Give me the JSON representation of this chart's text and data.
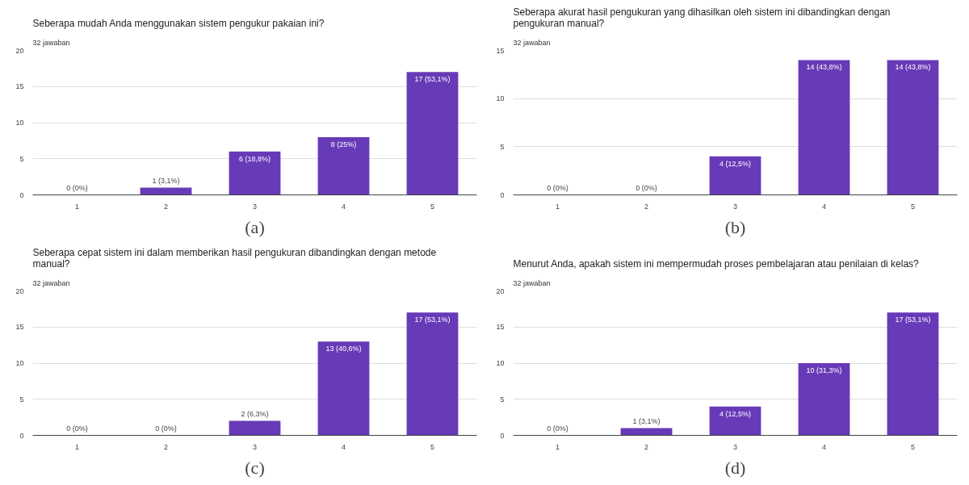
{
  "chart_data": [
    {
      "type": "bar",
      "title": "Seberapa mudah Anda menggunakan sistem pengukur pakaian ini?",
      "subtitle": "32 jawaban",
      "categories": [
        "1",
        "2",
        "3",
        "4",
        "5"
      ],
      "values": [
        0,
        1,
        6,
        8,
        17
      ],
      "value_labels": [
        "0 (0%)",
        "1 (3,1%)",
        "6 (18,8%)",
        "8 (25%)",
        "17 (53,1%)"
      ],
      "color": "#673ab7",
      "ylim": [
        0,
        20
      ],
      "yticks": [
        0,
        5,
        10,
        15,
        20
      ],
      "grid": "y",
      "annotations": [
        "(a)"
      ]
    },
    {
      "type": "bar",
      "title": "Seberapa akurat hasil pengukuran yang dihasilkan oleh sistem ini dibandingkan dengan pengukuran manual?",
      "subtitle": "32 jawaban",
      "categories": [
        "1",
        "2",
        "3",
        "4",
        "5"
      ],
      "values": [
        0,
        0,
        4,
        14,
        14
      ],
      "value_labels": [
        "0 (0%)",
        "0 (0%)",
        "4 (12,5%)",
        "14 (43,8%)",
        "14 (43,8%)"
      ],
      "color": "#673ab7",
      "ylim": [
        0,
        15
      ],
      "yticks": [
        0,
        5,
        10,
        15
      ],
      "grid": "y",
      "annotations": [
        "(b)"
      ]
    },
    {
      "type": "bar",
      "title": "Seberapa cepat sistem ini dalam memberikan hasil pengukuran dibandingkan dengan metode manual?",
      "subtitle": "32 jawaban",
      "categories": [
        "1",
        "2",
        "3",
        "4",
        "5"
      ],
      "values": [
        0,
        0,
        2,
        13,
        17
      ],
      "value_labels": [
        "0 (0%)",
        "0 (0%)",
        "2 (6,3%)",
        "13 (40,6%)",
        "17 (53,1%)"
      ],
      "color": "#673ab7",
      "ylim": [
        0,
        20
      ],
      "yticks": [
        0,
        5,
        10,
        15,
        20
      ],
      "grid": "y",
      "annotations": [
        "(c)"
      ]
    },
    {
      "type": "bar",
      "title": "Menurut Anda, apakah sistem ini mempermudah proses pembelajaran atau penilaian di kelas?",
      "subtitle": "32 jawaban",
      "categories": [
        "1",
        "2",
        "3",
        "4",
        "5"
      ],
      "values": [
        0,
        1,
        4,
        10,
        17
      ],
      "value_labels": [
        "0 (0%)",
        "1 (3,1%)",
        "4 (12,5%)",
        "10 (31,3%)",
        "17 (53,1%)"
      ],
      "color": "#673ab7",
      "ylim": [
        0,
        20
      ],
      "yticks": [
        0,
        5,
        10,
        15,
        20
      ],
      "grid": "y",
      "annotations": [
        "(d)"
      ]
    }
  ]
}
